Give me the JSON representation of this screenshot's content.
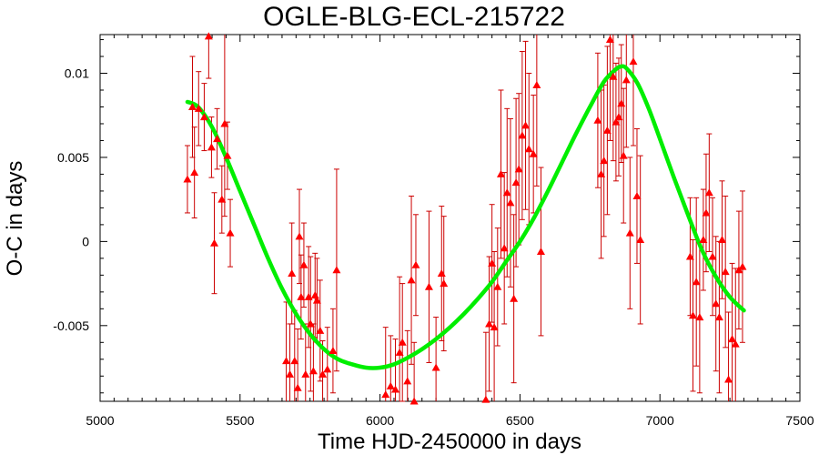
{
  "chart_data": {
    "type": "scatter",
    "title": "OGLE-BLG-ECL-215722",
    "xlabel": "Time HJD-2450000 in days",
    "ylabel": "O-C in days",
    "xlim": [
      5000,
      7500
    ],
    "ylim": [
      -0.0095,
      0.0123
    ],
    "xticks": [
      5000,
      5500,
      6000,
      6500,
      7000,
      7500
    ],
    "xtick_labels": [
      "5000",
      "5500",
      "6000",
      "6500",
      "7000",
      "7500"
    ],
    "yticks": [
      -0.005,
      0,
      0.005,
      0.01
    ],
    "ytick_labels": [
      "-0.005",
      "0",
      "0.005",
      "0.01"
    ],
    "grid": false,
    "colors": {
      "points": "#ff0000",
      "errorbars": "#cc0000",
      "fit": "#00ee00"
    },
    "series": [
      {
        "kind": "points_with_errorbars",
        "marker": "triangle",
        "points": [
          {
            "x": 5312,
            "y": 0.0037,
            "err": 0.002
          },
          {
            "x": 5330,
            "y": 0.008,
            "err": 0.003
          },
          {
            "x": 5337,
            "y": 0.0041,
            "err": 0.0027
          },
          {
            "x": 5352,
            "y": 0.0079,
            "err": 0.0022
          },
          {
            "x": 5372,
            "y": 0.0074,
            "err": 0.002
          },
          {
            "x": 5388,
            "y": 0.0122,
            "err": 0.0025
          },
          {
            "x": 5398,
            "y": 0.0056,
            "err": 0.0018
          },
          {
            "x": 5408,
            "y": -0.0001,
            "err": 0.003
          },
          {
            "x": 5418,
            "y": 0.0061,
            "err": 0.0018
          },
          {
            "x": 5435,
            "y": 0.0025,
            "err": 0.002
          },
          {
            "x": 5445,
            "y": 0.007,
            "err": 0.0055
          },
          {
            "x": 5455,
            "y": 0.0051,
            "err": 0.002
          },
          {
            "x": 5465,
            "y": 0.0005,
            "err": 0.002
          },
          {
            "x": 5665,
            "y": -0.0071,
            "err": 0.0035
          },
          {
            "x": 5678,
            "y": -0.0079,
            "err": 0.003
          },
          {
            "x": 5685,
            "y": -0.0019,
            "err": 0.003
          },
          {
            "x": 5695,
            "y": -0.0071,
            "err": 0.003
          },
          {
            "x": 5706,
            "y": -0.0087,
            "err": 0.0035
          },
          {
            "x": 5712,
            "y": 0.0003,
            "err": 0.0028
          },
          {
            "x": 5718,
            "y": -0.0033,
            "err": 0.0025
          },
          {
            "x": 5728,
            "y": -0.0014,
            "err": 0.0025
          },
          {
            "x": 5734,
            "y": -0.0079,
            "err": 0.003
          },
          {
            "x": 5745,
            "y": -0.0033,
            "err": 0.003
          },
          {
            "x": 5752,
            "y": -0.0049,
            "err": 0.004
          },
          {
            "x": 5762,
            "y": -0.0077,
            "err": 0.0028
          },
          {
            "x": 5768,
            "y": -0.0032,
            "err": 0.0025
          },
          {
            "x": 5775,
            "y": -0.0035,
            "err": 0.0025
          },
          {
            "x": 5786,
            "y": -0.0053,
            "err": 0.003
          },
          {
            "x": 5795,
            "y": -0.0079,
            "err": 0.002
          },
          {
            "x": 5812,
            "y": -0.0076,
            "err": 0.0025
          },
          {
            "x": 5832,
            "y": -0.0065,
            "err": 0.0025
          },
          {
            "x": 5845,
            "y": -0.0017,
            "err": 0.006
          },
          {
            "x": 6020,
            "y": -0.0091,
            "err": 0.004
          },
          {
            "x": 6038,
            "y": -0.0086,
            "err": 0.003
          },
          {
            "x": 6055,
            "y": -0.0088,
            "err": 0.003
          },
          {
            "x": 6070,
            "y": -0.0066,
            "err": 0.0045
          },
          {
            "x": 6080,
            "y": -0.006,
            "err": 0.0035
          },
          {
            "x": 6098,
            "y": -0.0083,
            "err": 0.003
          },
          {
            "x": 6112,
            "y": -0.0023,
            "err": 0.005
          },
          {
            "x": 6122,
            "y": -0.0095,
            "err": 0.0035
          },
          {
            "x": 6128,
            "y": -0.0014,
            "err": 0.003
          },
          {
            "x": 6175,
            "y": -0.0027,
            "err": 0.0045
          },
          {
            "x": 6200,
            "y": -0.0075,
            "err": 0.003
          },
          {
            "x": 6220,
            "y": -0.0019,
            "err": 0.004
          },
          {
            "x": 6228,
            "y": -0.0025,
            "err": 0.004
          },
          {
            "x": 6378,
            "y": -0.0094,
            "err": 0.004
          },
          {
            "x": 6390,
            "y": -0.0049,
            "err": 0.004
          },
          {
            "x": 6400,
            "y": -0.0013,
            "err": 0.0035
          },
          {
            "x": 6408,
            "y": -0.0051,
            "err": 0.0045
          },
          {
            "x": 6420,
            "y": -0.0027,
            "err": 0.0035
          },
          {
            "x": 6432,
            "y": 0.004,
            "err": 0.005
          },
          {
            "x": 6444,
            "y": -0.0004,
            "err": 0.0045
          },
          {
            "x": 6454,
            "y": 0.0029,
            "err": 0.005
          },
          {
            "x": 6466,
            "y": 0.0023,
            "err": 0.005
          },
          {
            "x": 6478,
            "y": -0.0034,
            "err": 0.005
          },
          {
            "x": 6486,
            "y": 0.0035,
            "err": 0.005
          },
          {
            "x": 6496,
            "y": 0.0043,
            "err": 0.0045
          },
          {
            "x": 6508,
            "y": 0.0063,
            "err": 0.005
          },
          {
            "x": 6520,
            "y": 0.0069,
            "err": 0.005
          },
          {
            "x": 6532,
            "y": 0.0055,
            "err": 0.0045
          },
          {
            "x": 6548,
            "y": 0.0052,
            "err": 0.0035
          },
          {
            "x": 6560,
            "y": 0.0093,
            "err": 0.006
          },
          {
            "x": 6575,
            "y": -0.0006,
            "err": 0.005
          },
          {
            "x": 6778,
            "y": 0.0072,
            "err": 0.004
          },
          {
            "x": 6790,
            "y": 0.004,
            "err": 0.005
          },
          {
            "x": 6800,
            "y": 0.0048,
            "err": 0.0045
          },
          {
            "x": 6812,
            "y": 0.0066,
            "err": 0.005
          },
          {
            "x": 6822,
            "y": 0.012,
            "err": 0.006
          },
          {
            "x": 6833,
            "y": 0.0098,
            "err": 0.005
          },
          {
            "x": 6843,
            "y": 0.0071,
            "err": 0.0035
          },
          {
            "x": 6853,
            "y": 0.0074,
            "err": 0.0035
          },
          {
            "x": 6862,
            "y": 0.0082,
            "err": 0.0035
          },
          {
            "x": 6870,
            "y": 0.0051,
            "err": 0.004
          },
          {
            "x": 6880,
            "y": 0.0096,
            "err": 0.004
          },
          {
            "x": 6893,
            "y": 0.0005,
            "err": 0.0045
          },
          {
            "x": 6905,
            "y": 0.0107,
            "err": 0.005
          },
          {
            "x": 6918,
            "y": 0.0027,
            "err": 0.004
          },
          {
            "x": 6930,
            "y": 0.0001,
            "err": 0.005
          },
          {
            "x": 7108,
            "y": -0.0009,
            "err": 0.0035
          },
          {
            "x": 7118,
            "y": -0.0044,
            "err": 0.0045
          },
          {
            "x": 7130,
            "y": -0.0024,
            "err": 0.005
          },
          {
            "x": 7142,
            "y": -0.0045,
            "err": 0.0045
          },
          {
            "x": 7155,
            "y": 0.0001,
            "err": 0.003
          },
          {
            "x": 7165,
            "y": 0.0017,
            "err": 0.0035
          },
          {
            "x": 7176,
            "y": 0.0029,
            "err": 0.0035
          },
          {
            "x": 7188,
            "y": -0.0009,
            "err": 0.0035
          },
          {
            "x": 7200,
            "y": -0.0037,
            "err": 0.004
          },
          {
            "x": 7212,
            "y": -0.0045,
            "err": 0.0045
          },
          {
            "x": 7222,
            "y": 0.0001,
            "err": 0.0035
          },
          {
            "x": 7234,
            "y": -0.0018,
            "err": 0.0045
          },
          {
            "x": 7245,
            "y": -0.0082,
            "err": 0.004
          },
          {
            "x": 7258,
            "y": -0.0058,
            "err": 0.0045
          },
          {
            "x": 7270,
            "y": -0.0061,
            "err": 0.0045
          },
          {
            "x": 7282,
            "y": -0.0017,
            "err": 0.0035
          },
          {
            "x": 7295,
            "y": -0.0015,
            "err": 0.0045
          }
        ]
      },
      {
        "kind": "fit_curve",
        "x": [
          5312,
          5350,
          5400,
          5450,
          5500,
          5550,
          5600,
          5650,
          5700,
          5750,
          5800,
          5850,
          5900,
          5950,
          6000,
          6050,
          6100,
          6150,
          6200,
          6250,
          6300,
          6350,
          6400,
          6450,
          6500,
          6550,
          6600,
          6650,
          6700,
          6750,
          6800,
          6840,
          6860,
          6880,
          6920,
          6960,
          7000,
          7050,
          7100,
          7150,
          7200,
          7250,
          7300
        ],
        "y": [
          0.0083,
          0.008,
          0.0068,
          0.005,
          0.003,
          0.001,
          -0.001,
          -0.0028,
          -0.0043,
          -0.0055,
          -0.0064,
          -0.007,
          -0.0073,
          -0.0075,
          -0.0075,
          -0.0073,
          -0.0069,
          -0.0064,
          -0.0058,
          -0.0051,
          -0.0043,
          -0.0034,
          -0.0024,
          -0.0012,
          0.0,
          0.0014,
          0.003,
          0.0047,
          0.0064,
          0.008,
          0.0095,
          0.0102,
          0.0104,
          0.0103,
          0.0094,
          0.0079,
          0.0061,
          0.0038,
          0.0016,
          -0.0005,
          -0.0021,
          -0.0033,
          -0.0041
        ]
      }
    ]
  }
}
